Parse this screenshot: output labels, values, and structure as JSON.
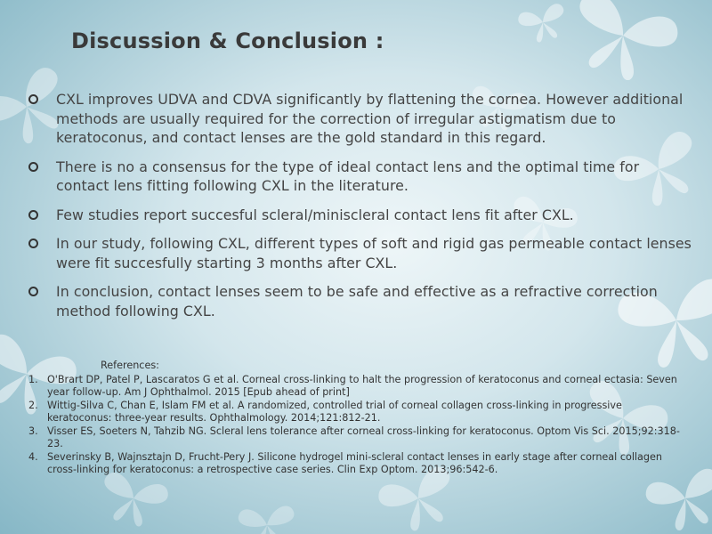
{
  "slide": {
    "title": "Discussion & Conclusion :",
    "bullets": [
      "CXL improves UDVA and CDVA significantly by flattening the cornea. However additional methods are usually required for the correction of irregular astigmatism due to keratoconus, and contact lenses are the gold standard in this regard.",
      "There is no a consensus for the type of ideal contact lens and the optimal time for contact lens fitting following CXL in the literature.",
      "Few studies report succesful scleral/miniscleral contact lens fit after CXL.",
      "In our study, following CXL, different types of soft and rigid gas permeable contact lenses were fit succesfully starting 3 months after CXL.",
      "In conclusion, contact lenses seem to  be safe and effective as a refractive correction method following CXL."
    ],
    "references": {
      "heading": "References:",
      "items": [
        {
          "num": "1.",
          "text": "O'Brart DP, Patel P, Lascaratos G et al. Corneal cross-linking to halt the progression of keratoconus and corneal ectasia: Seven year follow-up. Am J Ophthalmol. 2015 [Epub ahead of print]"
        },
        {
          "num": "2.",
          "text": "Wittig-Silva C, Chan E, Islam FM et al. A randomized, controlled trial of corneal collagen cross-linking in progressive keratoconus: three-year results. Ophthalmology. 2014;121:812-21."
        },
        {
          "num": "3.",
          "text": "Visser ES, Soeters N, Tahzib NG. Scleral lens tolerance after corneal cross-linking for keratoconus. Optom Vis Sci. 2015;92:318-23."
        },
        {
          "num": "4.",
          "text": "Severinsky B, Wajnsztajn D, Frucht-Pery J. Silicone hydrogel mini-scleral  contact lenses in early stage after corneal collagen cross-linking for keratoconus: a retrospective case series. Clin Exp Optom. 2013;96:542-6."
        }
      ]
    }
  },
  "theme": {
    "background_gradient": [
      "#eef6f8",
      "#d3e6ec",
      "#9fc6d2",
      "#86b7c6"
    ],
    "butterfly_color": "#ffffff",
    "title_color": "#3a3a3a",
    "text_color": "#444444",
    "decoration_icon": "butterfly-icon"
  }
}
